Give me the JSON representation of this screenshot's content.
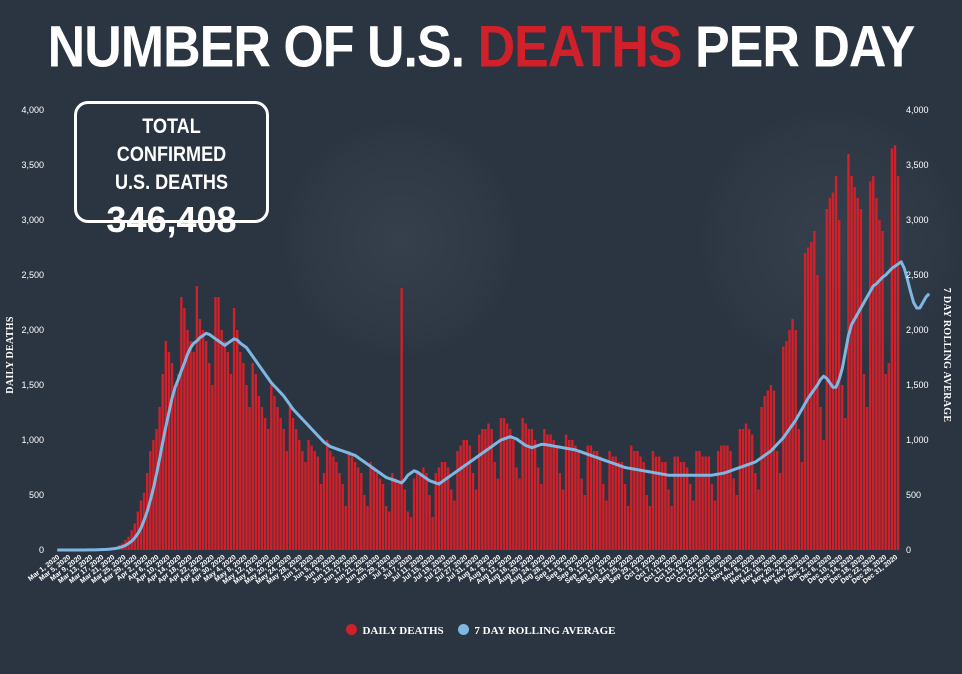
{
  "title": {
    "prefix": "NUMBER OF U.S.",
    "highlight": "DEATHS",
    "suffix": "PER DAY"
  },
  "total": {
    "label_line1": "TOTAL CONFIRMED",
    "label_line2": "U.S. DEATHS",
    "value": "346,408"
  },
  "legend": {
    "daily": "DAILY DEATHS",
    "avg": "7 DAY ROLLING AVERAGE"
  },
  "colors": {
    "background": "#2b3542",
    "bars": "#d0202a",
    "line": "#7fb6e2",
    "text": "#ffffff"
  },
  "chart_data": {
    "type": "bar",
    "title": "NUMBER OF U.S. DEATHS PER DAY",
    "ylabel_left": "DAILY DEATHS",
    "ylabel_right": "7 DAY ROLLING AVERAGE",
    "ylim": [
      0,
      4000
    ],
    "yticks": [
      "0",
      "500",
      "1,000",
      "1,500",
      "2,000",
      "2,500",
      "3,000",
      "3,500",
      "4,000"
    ],
    "x_start": "Mar 1, 2020",
    "x_end": "Dec 31, 2020",
    "xtick_labels": [
      "Mar 1, 2020",
      "Mar 5, 2020",
      "Mar 9, 2020",
      "Mar 13, 2020",
      "Mar 17, 2020",
      "Mar 21, 2020",
      "Mar 25, 2020",
      "Mar 29, 2020",
      "Apr 2, 2020",
      "Apr 6, 2020",
      "Apr 10, 2020",
      "Apr 14, 2020",
      "Apr 18, 2020",
      "Apr 22, 2020",
      "Apr 26, 2020",
      "Apr 30, 2020",
      "May 4, 2020",
      "May 8, 2020",
      "May 12, 2020",
      "May 16, 2020",
      "May 20, 2020",
      "May 24, 2020",
      "May 28, 2020",
      "Jun 1, 2020",
      "Jun 5, 2020",
      "Jun 9, 2020",
      "Jun 13, 2020",
      "Jun 17, 2020",
      "Jun 21, 2020",
      "Jun 25, 2020",
      "Jun 29, 2020",
      "Jul 3, 2020",
      "Jul 7, 2020",
      "Jul 11, 2020",
      "Jul 15, 2020",
      "Jul 19, 2020",
      "Jul 23, 2020",
      "Jul 27, 2020",
      "Jul 31, 2020",
      "Aug 4, 2020",
      "Aug 8, 2020",
      "Aug 12, 2020",
      "Aug 16, 2020",
      "Aug 20, 2020",
      "Aug 24, 2020",
      "Aug 28, 2020",
      "Sep 1, 2020",
      "Sep 5, 2020",
      "Sep 9, 2020",
      "Sep 13, 2020",
      "Sep 17, 2020",
      "Sep 21, 2020",
      "Sep 25, 2020",
      "Sep 29, 2020",
      "Oct 3, 2020",
      "Oct 7, 2020",
      "Oct 11, 2020",
      "Oct 15, 2020",
      "Oct 19, 2020",
      "Oct 23, 2020",
      "Oct 27, 2020",
      "Oct 31, 2020",
      "Nov 4, 2020",
      "Nov 8, 2020",
      "Nov 12, 2020",
      "Nov 16, 2020",
      "Nov 20, 2020",
      "Nov 24, 2020",
      "Nov 28, 2020",
      "Dec 2, 2020",
      "Dec 6, 2020",
      "Dec 10, 2020",
      "Dec 14, 2020",
      "Dec 18, 2020",
      "Dec 22, 2020",
      "Dec 26, 2020",
      "Dec 31, 2020"
    ],
    "series": [
      {
        "name": "DAILY DEATHS",
        "type": "bar",
        "values": [
          0,
          0,
          0,
          0,
          0,
          0,
          0,
          0,
          1,
          1,
          1,
          1,
          2,
          3,
          5,
          7,
          10,
          15,
          20,
          28,
          45,
          60,
          90,
          120,
          180,
          240,
          350,
          450,
          520,
          700,
          900,
          1000,
          1100,
          1300,
          1600,
          1900,
          1800,
          1700,
          1500,
          1600,
          2300,
          2200,
          2000,
          1900,
          1800,
          2400,
          2100,
          2000,
          1900,
          1700,
          1500,
          2300,
          2300,
          2000,
          1900,
          1800,
          1600,
          2200,
          2000,
          1800,
          1700,
          1500,
          1300,
          1700,
          1600,
          1400,
          1300,
          1200,
          1100,
          1500,
          1400,
          1300,
          1200,
          1100,
          900,
          1300,
          1200,
          1100,
          1000,
          900,
          800,
          1000,
          950,
          900,
          850,
          600,
          700,
          1000,
          900,
          850,
          800,
          700,
          600,
          400,
          900,
          850,
          800,
          750,
          700,
          500,
          400,
          800,
          750,
          700,
          650,
          600,
          400,
          350,
          700,
          650,
          600,
          2380,
          550,
          350,
          300,
          650,
          700,
          700,
          750,
          700,
          500,
          300,
          700,
          750,
          800,
          800,
          750,
          550,
          450,
          900,
          950,
          1000,
          1000,
          950,
          700,
          550,
          1050,
          1100,
          1100,
          1150,
          1100,
          800,
          650,
          1200,
          1200,
          1150,
          1100,
          1000,
          750,
          650,
          1200,
          1150,
          1100,
          1100,
          1000,
          750,
          600,
          1100,
          1050,
          1050,
          1000,
          950,
          700,
          550,
          1050,
          1000,
          1000,
          950,
          900,
          650,
          500,
          950,
          950,
          900,
          900,
          850,
          600,
          450,
          900,
          850,
          850,
          800,
          800,
          600,
          400,
          950,
          900,
          900,
          850,
          800,
          500,
          400,
          900,
          850,
          850,
          800,
          800,
          550,
          400,
          850,
          850,
          800,
          800,
          750,
          600,
          450,
          900,
          900,
          850,
          850,
          850,
          600,
          450,
          900,
          950,
          950,
          950,
          900,
          650,
          500,
          1100,
          1100,
          1150,
          1100,
          1050,
          700,
          550,
          1300,
          1400,
          1450,
          1500,
          1450,
          900,
          700,
          1850,
          1900,
          2000,
          2100,
          2000,
          1100,
          800,
          2700,
          2750,
          2800,
          2900,
          2500,
          1300,
          1000,
          3100,
          3200,
          3250,
          3400,
          3000,
          1500,
          1200,
          3600,
          3400,
          3300,
          3200,
          3100,
          1600,
          1300,
          3350,
          3400,
          3200,
          3000,
          2900,
          1600,
          1700,
          3650,
          3680,
          3400
        ]
      },
      {
        "name": "7 DAY ROLLING AVERAGE",
        "type": "line",
        "values": [
          0,
          0,
          0,
          0,
          0,
          0,
          0,
          0,
          0,
          0,
          1,
          1,
          1,
          2,
          3,
          4,
          6,
          8,
          11,
          15,
          22,
          30,
          42,
          60,
          80,
          110,
          150,
          200,
          270,
          350,
          450,
          560,
          690,
          830,
          980,
          1120,
          1250,
          1380,
          1480,
          1550,
          1630,
          1700,
          1780,
          1840,
          1880,
          1900,
          1930,
          1950,
          1970,
          1960,
          1940,
          1920,
          1900,
          1880,
          1860,
          1880,
          1900,
          1920,
          1910,
          1880,
          1860,
          1840,
          1800,
          1760,
          1720,
          1680,
          1640,
          1600,
          1560,
          1520,
          1490,
          1460,
          1430,
          1400,
          1360,
          1320,
          1280,
          1250,
          1220,
          1190,
          1160,
          1130,
          1100,
          1070,
          1040,
          1010,
          980,
          960,
          940,
          930,
          920,
          910,
          900,
          890,
          880,
          870,
          860,
          840,
          820,
          800,
          780,
          760,
          740,
          720,
          700,
          680,
          660,
          650,
          640,
          630,
          620,
          610,
          640,
          680,
          700,
          720,
          710,
          690,
          670,
          650,
          630,
          620,
          610,
          600,
          620,
          640,
          660,
          680,
          700,
          720,
          740,
          760,
          780,
          800,
          820,
          840,
          860,
          880,
          900,
          920,
          940,
          960,
          980,
          1000,
          1010,
          1020,
          1030,
          1020,
          1010,
          990,
          970,
          950,
          940,
          930,
          940,
          950,
          960,
          960,
          955,
          950,
          945,
          940,
          935,
          930,
          925,
          920,
          915,
          910,
          900,
          890,
          880,
          870,
          860,
          850,
          840,
          830,
          820,
          810,
          800,
          790,
          780,
          770,
          760,
          750,
          745,
          740,
          735,
          730,
          725,
          720,
          715,
          710,
          705,
          700,
          695,
          690,
          685,
          680,
          680,
          680,
          680,
          680,
          680,
          680,
          680,
          680,
          680,
          680,
          680,
          680,
          680,
          680,
          685,
          690,
          695,
          700,
          710,
          720,
          730,
          740,
          750,
          760,
          770,
          780,
          790,
          800,
          820,
          840,
          860,
          880,
          900,
          930,
          960,
          990,
          1020,
          1060,
          1100,
          1140,
          1180,
          1230,
          1280,
          1330,
          1380,
          1420,
          1460,
          1500,
          1550,
          1580,
          1560,
          1520,
          1480,
          1480,
          1550,
          1650,
          1800,
          1950,
          2050,
          2100,
          2150,
          2200,
          2250,
          2300,
          2350,
          2400,
          2420,
          2450,
          2480,
          2500,
          2530,
          2560,
          2580,
          2600,
          2620,
          2560,
          2460,
          2350,
          2250,
          2200,
          2200,
          2250,
          2300,
          2330
        ]
      }
    ]
  }
}
